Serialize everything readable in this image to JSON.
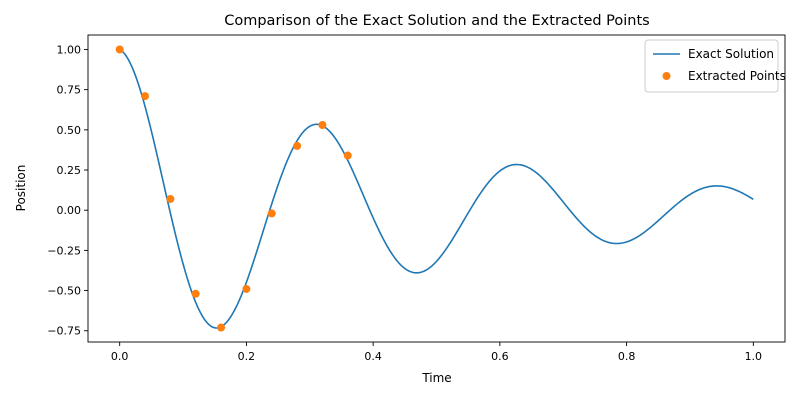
{
  "chart_data": {
    "type": "line",
    "title": "Comparison of the Exact Solution and the Extracted Points",
    "xlabel": "Time",
    "ylabel": "Position",
    "xlim": [
      -0.05,
      1.05
    ],
    "ylim": [
      -0.82,
      1.09
    ],
    "grid": false,
    "legend_position": "top-right",
    "x_ticks": [
      0.0,
      0.2,
      0.4,
      0.6,
      0.8,
      1.0
    ],
    "x_tick_labels": [
      "0.0",
      "0.2",
      "0.4",
      "0.6",
      "0.8",
      "1.0"
    ],
    "y_ticks": [
      1.0,
      0.75,
      0.5,
      0.25,
      0.0,
      -0.25,
      -0.5,
      -0.75
    ],
    "y_tick_labels": [
      "1.00",
      "0.75",
      "0.50",
      "0.25",
      "0.00",
      "−0.25",
      "−0.50",
      "−0.75"
    ],
    "series": [
      {
        "name": "Exact Solution",
        "kind": "line",
        "color": "#1f77b4",
        "function": {
          "form": "damped_cosine",
          "amplitude": 1.0,
          "decay": 2.0,
          "omega": 19.9
        }
      },
      {
        "name": "Extracted Points",
        "kind": "scatter",
        "color": "#ff7f0e",
        "x": [
          0.0,
          0.04,
          0.08,
          0.12,
          0.16,
          0.2,
          0.24,
          0.28,
          0.32,
          0.36
        ],
        "y": [
          1.0,
          0.71,
          0.07,
          -0.52,
          -0.73,
          -0.49,
          -0.02,
          0.4,
          0.53,
          0.34
        ]
      }
    ]
  }
}
